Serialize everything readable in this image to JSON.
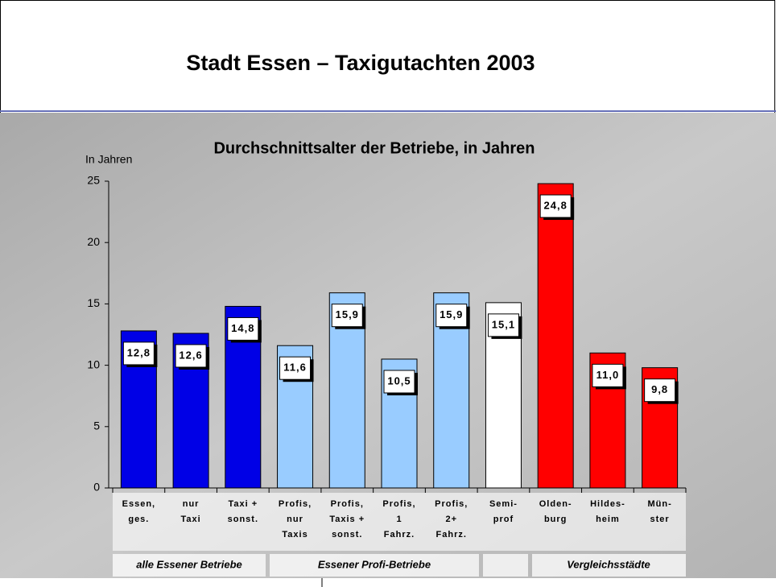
{
  "title": "Stadt Essen – Taxigutachten 2003",
  "chart_data": {
    "type": "bar",
    "title": "Durchschnittsalter der Betriebe, in Jahren",
    "y_label": "In Jahren",
    "categories": [
      "Essen,\nges.",
      "nur\nTaxi",
      "Taxi +\nsonst.",
      "Profis,\nnur\nTaxis",
      "Profis,\nTaxis +\nsonst.",
      "Profis,\n1\nFahrz.",
      "Profis,\n2+\nFahrz.",
      "Semi-\nprof",
      "Olden-\nburg",
      "Hildes-\nheim",
      "Mün-\nster"
    ],
    "values": [
      12.8,
      12.6,
      14.8,
      11.6,
      15.9,
      10.5,
      15.9,
      15.1,
      24.8,
      11.0,
      9.8
    ],
    "value_labels": [
      "12,8",
      "12,6",
      "14,8",
      "11,6",
      "15,9",
      "10,5",
      "15,9",
      "15,1",
      "24,8",
      "11,0",
      "9,8"
    ],
    "colors": [
      "#0000e6",
      "#0000e6",
      "#0000e6",
      "#99ccff",
      "#99ccff",
      "#99ccff",
      "#99ccff",
      "#ffffff",
      "#ff0000",
      "#ff0000",
      "#ff0000"
    ],
    "ylim": [
      0,
      25
    ],
    "yticks": [
      0,
      5,
      10,
      15,
      20,
      25
    ],
    "groups": [
      "alle Essener Betriebe",
      "Essener Profi-Betriebe",
      "Vergleichsstädte"
    ]
  }
}
